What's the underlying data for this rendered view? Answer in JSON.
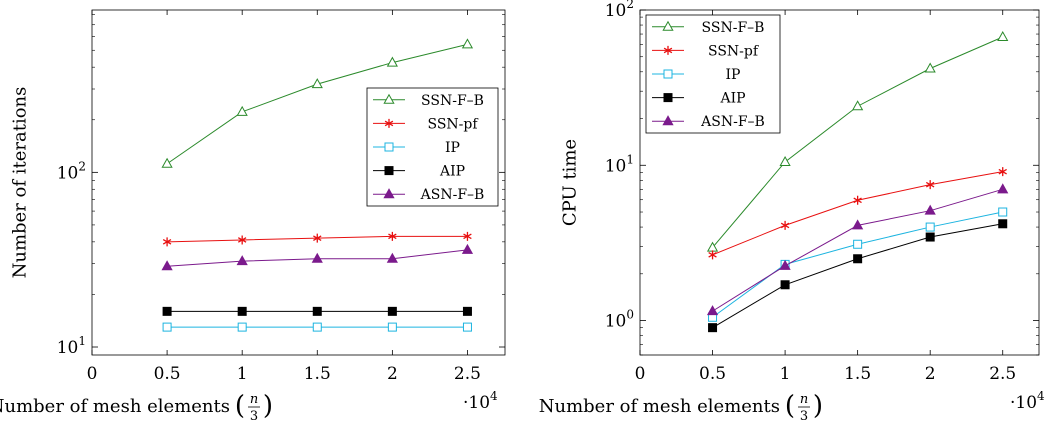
{
  "chart_data": [
    {
      "type": "line",
      "yscale": "log",
      "xlabel": "Number of mesh elements",
      "xlabel_fraction": {
        "numerator": "n",
        "denominator": "3"
      },
      "x_multiplier": {
        "base": "·10",
        "exponent": "4"
      },
      "ylabel": "Number of iterations",
      "xlim": [
        0,
        2.75
      ],
      "ylim": [
        9,
        850
      ],
      "xticks": [
        0,
        0.5,
        1,
        1.5,
        2,
        2.5
      ],
      "xtick_labels": [
        "0",
        "0.5",
        "1",
        "1.5",
        "2",
        "2.5"
      ],
      "yticks": [
        {
          "value": 10,
          "base": "10",
          "exp": "1"
        },
        {
          "value": 100,
          "base": "10",
          "exp": "2"
        }
      ],
      "grid": false,
      "legend_position": "center-right",
      "x": [
        0.5,
        1,
        1.5,
        2,
        2.5
      ],
      "series": [
        {
          "name": "SSN-F–B",
          "color": "#2b8a2b",
          "marker": "triangle-open",
          "values": [
            112,
            222,
            320,
            425,
            540
          ]
        },
        {
          "name": "SSN-pf",
          "color": "#e81010",
          "marker": "asterisk",
          "values": [
            40,
            41,
            42,
            43,
            43
          ]
        },
        {
          "name": "IP",
          "color": "#1cb4e0",
          "marker": "square-open",
          "values": [
            13,
            13,
            13,
            13,
            13
          ]
        },
        {
          "name": "AIP",
          "color": "#000000",
          "marker": "square-filled",
          "values": [
            16,
            16,
            16,
            16,
            16
          ]
        },
        {
          "name": "ASN-F–B",
          "color": "#7b1a8c",
          "marker": "triangle-filled",
          "values": [
            29,
            31,
            32,
            32,
            36
          ]
        }
      ]
    },
    {
      "type": "line",
      "yscale": "log",
      "xlabel": "Number of mesh elements",
      "xlabel_fraction": {
        "numerator": "n",
        "denominator": "3"
      },
      "x_multiplier": {
        "base": "·10",
        "exponent": "4"
      },
      "ylabel": "CPU time",
      "xlim": [
        0,
        2.75
      ],
      "ylim": [
        0.6,
        100
      ],
      "xticks": [
        0,
        0.5,
        1,
        1.5,
        2,
        2.5
      ],
      "xtick_labels": [
        "0",
        "0.5",
        "1",
        "1.5",
        "2",
        "2.5"
      ],
      "yticks": [
        {
          "value": 1,
          "base": "10",
          "exp": "0"
        },
        {
          "value": 10,
          "base": "10",
          "exp": "1"
        },
        {
          "value": 100,
          "base": "10",
          "exp": "2"
        }
      ],
      "grid": false,
      "legend_position": "top-left",
      "x": [
        0.5,
        1,
        1.5,
        2,
        2.5
      ],
      "series": [
        {
          "name": "SSN-F–B",
          "color": "#2b8a2b",
          "marker": "triangle-open",
          "values": [
            2.95,
            10.5,
            24,
            42,
            67
          ]
        },
        {
          "name": "SSN-pf",
          "color": "#e81010",
          "marker": "asterisk",
          "values": [
            2.65,
            4.1,
            5.95,
            7.5,
            9.1
          ]
        },
        {
          "name": "IP",
          "color": "#1cb4e0",
          "marker": "square-open",
          "values": [
            1.05,
            2.3,
            3.1,
            4.0,
            5.0
          ]
        },
        {
          "name": "AIP",
          "color": "#000000",
          "marker": "square-filled",
          "values": [
            0.9,
            1.7,
            2.5,
            3.45,
            4.2
          ]
        },
        {
          "name": "ASN-F–B",
          "color": "#7b1a8c",
          "marker": "triangle-filled",
          "values": [
            1.15,
            2.25,
            4.1,
            5.1,
            7.0
          ]
        }
      ]
    }
  ]
}
